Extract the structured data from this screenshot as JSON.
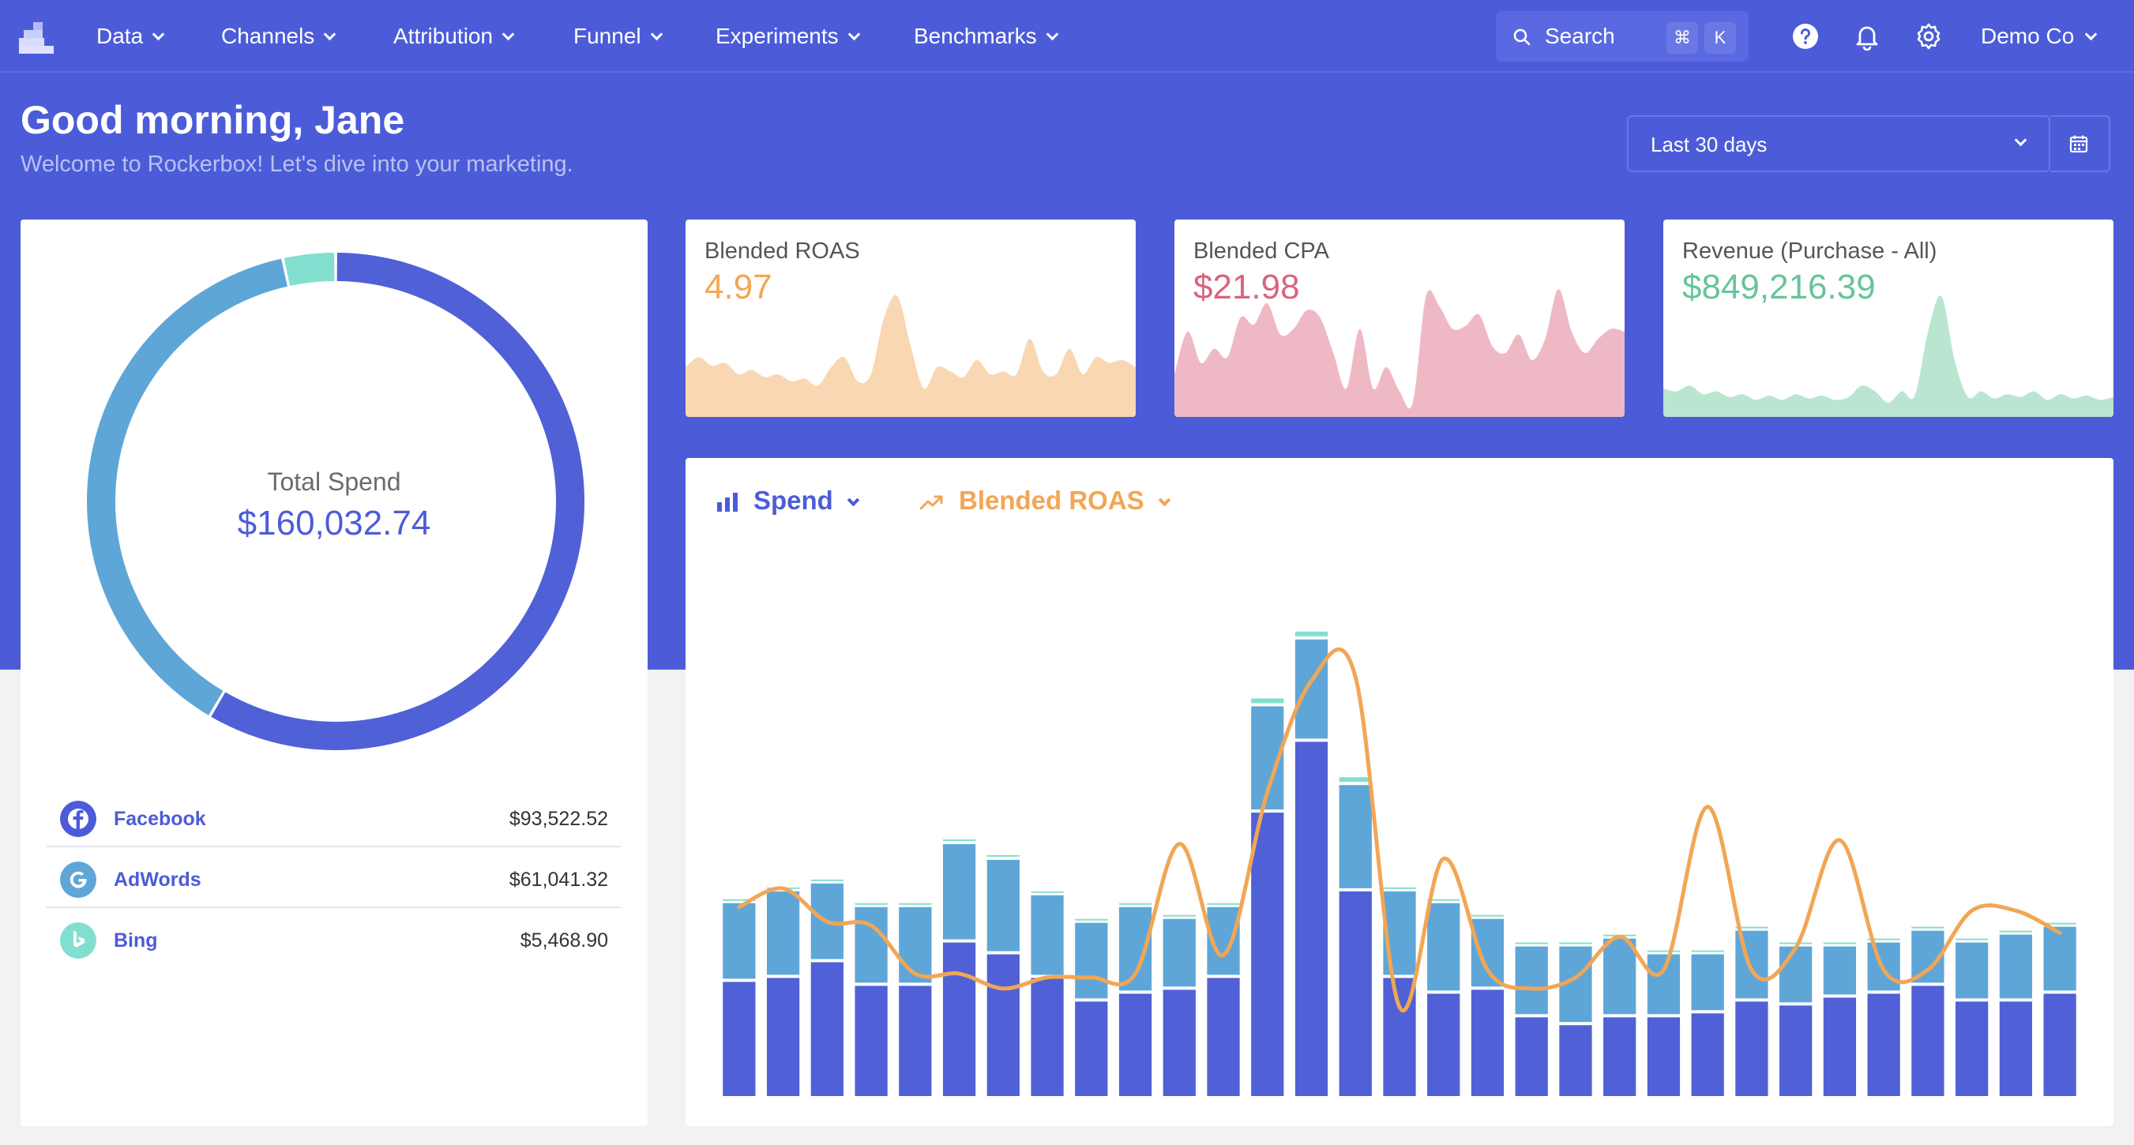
{
  "nav": {
    "items": [
      {
        "label": "Data"
      },
      {
        "label": "Channels"
      },
      {
        "label": "Attribution"
      },
      {
        "label": "Funnel"
      },
      {
        "label": "Experiments"
      },
      {
        "label": "Benchmarks"
      }
    ],
    "search_label": "Search",
    "shortcut_keys": [
      "⌘",
      "K"
    ],
    "account_label": "Demo Co"
  },
  "header": {
    "greeting": "Good morning, Jane",
    "subtitle": "Welcome to Rockerbox! Let's dive into your marketing."
  },
  "date_range": {
    "selected": "Last 30 days"
  },
  "colors": {
    "brand": "#4c5cd8",
    "facebook": "#5060d6",
    "adwords": "#5fa6d8",
    "bing": "#82dfd0",
    "roas": "#f2a654",
    "cpa": "#d9647e",
    "revenue": "#66c59a"
  },
  "spend_donut": {
    "label": "Total Spend",
    "value": "$160,032.74",
    "channels": [
      {
        "name": "Facebook",
        "value": "$93,522.52",
        "amount": 93522.52,
        "icon": "facebook-icon"
      },
      {
        "name": "AdWords",
        "value": "$61,041.32",
        "amount": 61041.32,
        "icon": "google-icon"
      },
      {
        "name": "Bing",
        "value": "$5,468.90",
        "amount": 5468.9,
        "icon": "bing-icon"
      }
    ]
  },
  "kpis": [
    {
      "label": "Blended ROAS",
      "value": "4.97"
    },
    {
      "label": "Blended CPA",
      "value": "$21.98"
    },
    {
      "label": "Revenue (Purchase - All)",
      "value": "$849,216.39"
    }
  ],
  "sparklines": {
    "roas": [
      0.35,
      0.42,
      0.36,
      0.38,
      0.3,
      0.33,
      0.28,
      0.3,
      0.25,
      0.27,
      0.22,
      0.35,
      0.42,
      0.25,
      0.3,
      0.7,
      0.85,
      0.5,
      0.2,
      0.35,
      0.32,
      0.28,
      0.4,
      0.3,
      0.32,
      0.3,
      0.55,
      0.32,
      0.3,
      0.48,
      0.3,
      0.42,
      0.38,
      0.4,
      0.35
    ],
    "cpa": [
      0.3,
      0.6,
      0.38,
      0.48,
      0.42,
      0.7,
      0.65,
      0.8,
      0.58,
      0.62,
      0.75,
      0.7,
      0.45,
      0.2,
      0.62,
      0.2,
      0.35,
      0.18,
      0.1,
      0.85,
      0.78,
      0.62,
      0.64,
      0.72,
      0.5,
      0.45,
      0.58,
      0.4,
      0.55,
      0.9,
      0.6,
      0.45,
      0.55,
      0.62,
      0.6
    ],
    "revenue": [
      0.2,
      0.18,
      0.22,
      0.16,
      0.18,
      0.14,
      0.16,
      0.12,
      0.15,
      0.12,
      0.16,
      0.13,
      0.15,
      0.12,
      0.14,
      0.22,
      0.18,
      0.1,
      0.18,
      0.15,
      0.6,
      0.85,
      0.4,
      0.14,
      0.18,
      0.13,
      0.16,
      0.14,
      0.18,
      0.12,
      0.16,
      0.13,
      0.15,
      0.12,
      0.14
    ]
  },
  "main_chart": {
    "metric_left": "Spend",
    "metric_right": "Blended ROAS"
  },
  "chart_data": {
    "type": "bar",
    "stacked": true,
    "series": [
      {
        "name": "Facebook",
        "values": [
          2900,
          3000,
          3400,
          2800,
          2800,
          3900,
          3600,
          3000,
          2400,
          2600,
          2700,
          3000,
          7200,
          9000,
          5200,
          3000,
          2600,
          2700,
          2000,
          1800,
          2000,
          2000,
          2100,
          2400,
          2300,
          2500,
          2600,
          2800,
          2400,
          2400,
          2600
        ]
      },
      {
        "name": "AdWords",
        "values": [
          2000,
          2200,
          2000,
          2000,
          2000,
          2500,
          2400,
          2100,
          2000,
          2200,
          1800,
          1800,
          2700,
          2600,
          2700,
          2200,
          2300,
          1800,
          1800,
          2000,
          2000,
          1600,
          1500,
          1800,
          1500,
          1300,
          1300,
          1400,
          1500,
          1700,
          1700
        ]
      },
      {
        "name": "Bing",
        "values": [
          100,
          100,
          100,
          100,
          100,
          120,
          120,
          100,
          100,
          100,
          100,
          100,
          200,
          200,
          200,
          100,
          100,
          100,
          100,
          100,
          100,
          100,
          100,
          100,
          100,
          100,
          100,
          100,
          100,
          100,
          100
        ]
      },
      {
        "name": "Blended ROAS",
        "values": [
          5.1,
          5.6,
          4.7,
          4.6,
          3.3,
          3.3,
          2.9,
          3.2,
          3.2,
          3.3,
          6.8,
          3.8,
          8.2,
          11.2,
          11.3,
          2.4,
          6.4,
          3.4,
          2.9,
          3.2,
          4.3,
          3.4,
          7.8,
          3.4,
          4.0,
          6.9,
          3.4,
          3.4,
          5.0,
          5.0,
          4.4
        ]
      }
    ]
  }
}
